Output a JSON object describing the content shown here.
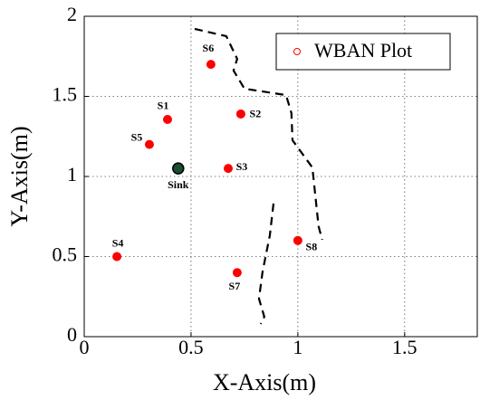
{
  "chart_data": {
    "type": "scatter",
    "xlabel": "X-Axis(m)",
    "ylabel": "Y-Axis(m)",
    "xlim": [
      0,
      1.84
    ],
    "ylim": [
      0,
      2
    ],
    "xticks": [
      0,
      0.5,
      1,
      1.5
    ],
    "yticks": [
      0,
      0.5,
      1,
      1.5,
      2
    ],
    "grid": true,
    "legend": "upper right",
    "series": [
      {
        "name": "WBAN Plot",
        "color": "#ff0000",
        "labels": [
          "S1",
          "S2",
          "S3",
          "S4",
          "S5",
          "S6",
          "S7",
          "S8"
        ],
        "x": [
          0.39,
          0.733,
          0.674,
          0.153,
          0.305,
          0.593,
          0.716,
          1.0
        ],
        "y": [
          1.356,
          1.39,
          1.05,
          0.5,
          1.2,
          1.7,
          0.4,
          0.6
        ]
      },
      {
        "color": "#1b4d2e",
        "labels": [
          "Sink"
        ],
        "x": [
          0.44
        ],
        "y": [
          1.05
        ]
      },
      {
        "type": "line",
        "color": "#000000",
        "x": [
          0.517,
          0.665,
          0.716,
          0.699,
          0.75,
          0.945,
          0.97,
          0.975,
          1.068,
          1.097,
          1.114,
          null,
          0.886,
          0.869,
          0.835,
          0.818,
          0.843,
          0.826
        ],
        "y": [
          1.921,
          1.876,
          1.734,
          1.661,
          1.548,
          1.508,
          1.395,
          1.226,
          1.056,
          0.689,
          0.605,
          null,
          0.831,
          0.633,
          0.407,
          0.237,
          0.124,
          0.079
        ]
      }
    ]
  }
}
